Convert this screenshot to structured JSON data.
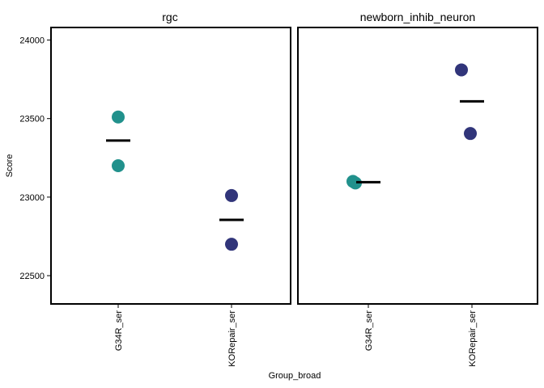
{
  "chart_data": {
    "type": "scatter",
    "xlabel": "Group_broad",
    "ylabel": "Score",
    "ylim": [
      22320,
      24080
    ],
    "yticks": [
      22500,
      23000,
      23500,
      24000
    ],
    "categories": [
      "G34R_ser",
      "KORepair_ser"
    ],
    "colors": {
      "G34R_ser": "#21918c",
      "KORepair_ser": "#31357a"
    },
    "mean_marker": "black horizontal bar",
    "panels": [
      {
        "title": "rgc",
        "points": [
          {
            "group": "G34R_ser",
            "y": 23510
          },
          {
            "group": "G34R_ser",
            "y": 23200
          },
          {
            "group": "KORepair_ser",
            "y": 23010
          },
          {
            "group": "KORepair_ser",
            "y": 22700
          }
        ],
        "means": [
          {
            "group": "G34R_ser",
            "y": 23360
          },
          {
            "group": "KORepair_ser",
            "y": 22855
          }
        ]
      },
      {
        "title": "newborn_inhib_neuron",
        "points": [
          {
            "group": "G34R_ser",
            "y": 23100
          },
          {
            "group": "G34R_ser",
            "y": 23090
          },
          {
            "group": "KORepair_ser",
            "y": 23810
          },
          {
            "group": "KORepair_ser",
            "y": 23405
          }
        ],
        "means": [
          {
            "group": "G34R_ser",
            "y": 23095
          },
          {
            "group": "KORepair_ser",
            "y": 23610
          }
        ]
      }
    ]
  }
}
